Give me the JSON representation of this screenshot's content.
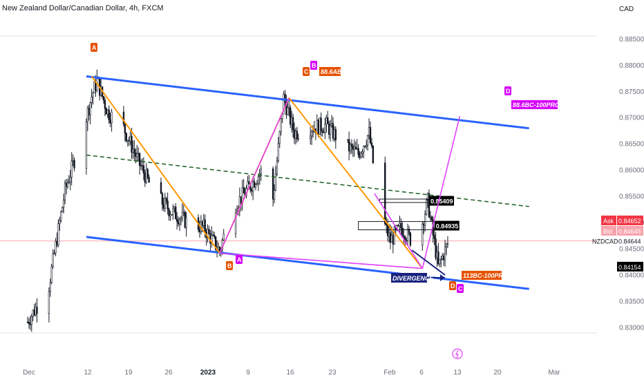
{
  "chart_data": {
    "type": "candlestick",
    "title": "New Zealand Dollar/Canadian Dollar, 4h, FXCM",
    "currency": "CAD",
    "symbol_label": "NZDCAD",
    "y_ticks": [
      "0.88500",
      "0.88000",
      "0.87500",
      "0.87000",
      "0.86500",
      "0.86000",
      "0.85500",
      "0.85000",
      "0.84500",
      "0.84000",
      "0.83500",
      "0.83000"
    ],
    "x_ticks": [
      "Dec",
      "12",
      "19",
      "26",
      "2023",
      "9",
      "16",
      "23",
      "Feb",
      "6",
      "13",
      "20",
      "Mar"
    ],
    "ylim": [
      0.8285,
      0.8905
    ],
    "price_tags": {
      "ask": {
        "label": "Ask",
        "value": "0.84652",
        "color": "#f23645"
      },
      "bid": {
        "label": "Bid",
        "value": "0.84645",
        "color": "#f7a3ab"
      },
      "last": {
        "label": "NZDCAD",
        "value": "0.84644"
      },
      "low": {
        "value": "0.84154",
        "color": "#000000"
      }
    },
    "channel": {
      "upper": [
        [
          "Dec 12",
          0.8778
        ],
        [
          "Mar 5",
          0.8679
        ]
      ],
      "lower": [
        [
          "Dec 12",
          0.8472
        ],
        [
          "Mar 5",
          0.8373
        ]
      ],
      "mid": [
        [
          "Dec 12",
          0.8628
        ],
        [
          "Mar 5",
          0.853
        ]
      ]
    },
    "levels": [
      {
        "label": "0.85409",
        "value": 0.85409,
        "from": "Feb 5",
        "to": "Feb 14"
      },
      {
        "label": "0.84935",
        "value": 0.84935,
        "from": "Feb 1",
        "to": "Feb 15"
      }
    ],
    "patterns": {
      "orange": [
        [
          "Dec 13",
          0.8778,
          "A"
        ],
        [
          "Jan 6",
          0.8441,
          "B"
        ],
        [
          "Jan 19",
          0.8737,
          "C"
        ],
        [
          "Feb 13",
          0.8412,
          "D"
        ]
      ],
      "magenta": [
        [
          "Jan 19",
          0.8737,
          "B"
        ],
        [
          "Jan 6",
          0.8441,
          "A"
        ],
        [
          "Feb 13",
          0.8412,
          "C"
        ],
        [
          "Feb 20",
          0.8702,
          "D"
        ]
      ]
    },
    "annotations": {
      "ab": "88.6AB",
      "bc_pro": "88.6BC-100PRO",
      "bc_113": "113BC-100PRO",
      "divergence": "DIVERGENCE",
      "letters": {
        "A": "A",
        "B": "B",
        "C": "C",
        "D": "D"
      }
    },
    "colors": {
      "up": "#26a69a",
      "down": "#ef5350",
      "candle": "#131722",
      "channel": "#2962ff",
      "orange": "#ff9800",
      "magenta": "#e040fb",
      "mid": "#1b5e20",
      "divergence": "#1a237e"
    },
    "grid": false
  }
}
